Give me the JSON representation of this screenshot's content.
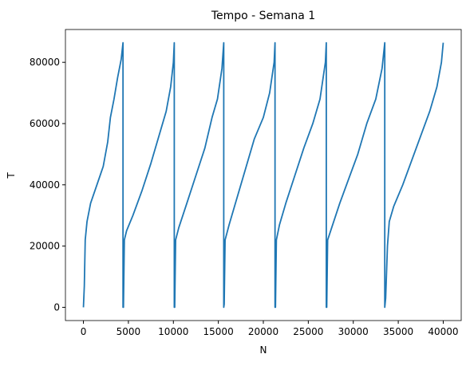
{
  "chart_data": {
    "type": "line",
    "title": "Tempo - Semana 1",
    "x_label": "N",
    "y_label": "T",
    "series": [
      {
        "color": "#1f77b4",
        "x": [
          0,
          100,
          200,
          400,
          800,
          1500,
          2200,
          2700,
          3000,
          3400,
          3800,
          4200,
          4400,
          4400,
          4450,
          4550,
          4800,
          5500,
          6500,
          7500,
          8500,
          9200,
          9700,
          10000,
          10100,
          10100,
          10150,
          10250,
          10600,
          11500,
          12500,
          13500,
          14300,
          14900,
          15400,
          15600,
          15600,
          15650,
          15750,
          16200,
          17000,
          18000,
          19000,
          20000,
          20700,
          21200,
          21300,
          21300,
          21350,
          21450,
          21800,
          22500,
          23500,
          24500,
          25500,
          26300,
          26900,
          27000,
          27000,
          27050,
          27150,
          27600,
          28500,
          29500,
          30500,
          31500,
          32500,
          33200,
          33500,
          33500,
          33600,
          33800,
          34000,
          34500,
          35500,
          36500,
          37500,
          38500,
          39300,
          39800,
          40000
        ],
        "values": [
          0,
          7000,
          22000,
          28000,
          34000,
          40000,
          46000,
          54000,
          62000,
          68000,
          75000,
          81000,
          86400,
          0,
          0,
          22000,
          25000,
          30000,
          38000,
          47000,
          57000,
          64000,
          72000,
          80000,
          86400,
          0,
          0,
          22000,
          26000,
          34000,
          43000,
          52000,
          62000,
          68000,
          78000,
          86400,
          0,
          1000,
          22000,
          27000,
          35000,
          45000,
          55000,
          62000,
          70000,
          80000,
          86400,
          0,
          0,
          22000,
          27000,
          34000,
          43000,
          52000,
          60000,
          68000,
          80000,
          86400,
          0,
          0,
          22000,
          26000,
          34000,
          42000,
          50000,
          60000,
          68000,
          78000,
          86400,
          0,
          3000,
          20000,
          28000,
          33000,
          40000,
          48000,
          56000,
          64000,
          72000,
          80000,
          86400
        ]
      }
    ],
    "xlim": [
      -2000,
      42000
    ],
    "ylim": [
      -4320,
      90720
    ],
    "xticks": [
      0,
      5000,
      10000,
      15000,
      20000,
      25000,
      30000,
      35000,
      40000
    ],
    "yticks": [
      0,
      20000,
      40000,
      60000,
      80000
    ]
  }
}
